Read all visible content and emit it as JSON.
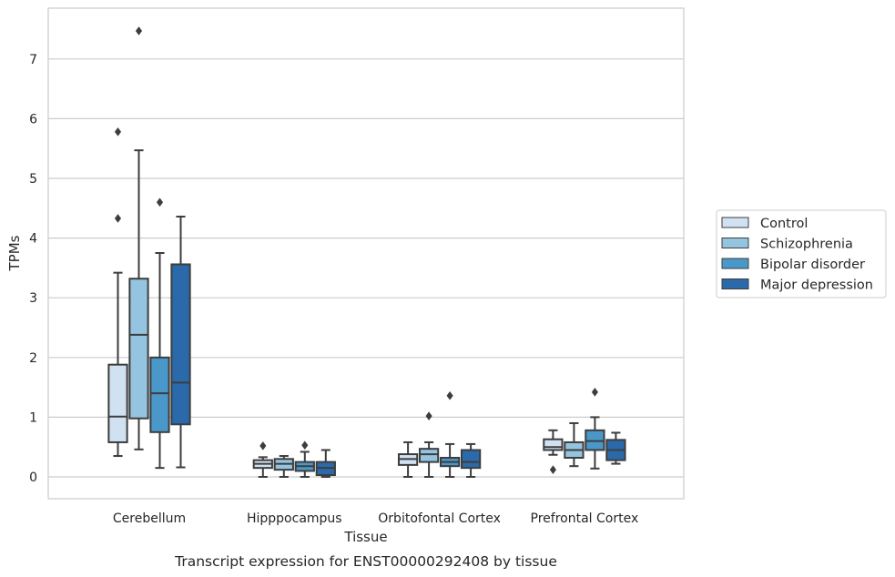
{
  "chart_data": {
    "type": "box",
    "xlabel": "Tissue",
    "ylabel": "TPMs",
    "caption": "Transcript expression for ENST00000292408 by tissue",
    "ylim": [
      -0.35,
      7.85
    ],
    "yticks": [
      0,
      1,
      2,
      3,
      4,
      5,
      6,
      7
    ],
    "grid": "horizontal",
    "legend_position": "right",
    "categories": [
      "Cerebellum",
      "Hipppocampus",
      "Orbitofontal Cortex",
      "Prefrontal Cortex"
    ],
    "series": [
      {
        "name": "Control",
        "color": "#d0e1f2",
        "boxes": [
          {
            "whislo": 0.35,
            "q1": 0.58,
            "med": 1.01,
            "q3": 1.88,
            "whishi": 3.42,
            "fliers": [
              4.33,
              5.78
            ]
          },
          {
            "whislo": 0.0,
            "q1": 0.15,
            "med": 0.22,
            "q3": 0.28,
            "whishi": 0.33,
            "fliers": [
              0.52
            ]
          },
          {
            "whislo": 0.0,
            "q1": 0.2,
            "med": 0.3,
            "q3": 0.38,
            "whishi": 0.58,
            "fliers": []
          },
          {
            "whislo": 0.37,
            "q1": 0.45,
            "med": 0.5,
            "q3": 0.63,
            "whishi": 0.78,
            "fliers": [
              0.12
            ]
          }
        ]
      },
      {
        "name": "Schizophrenia",
        "color": "#94c4df",
        "boxes": [
          {
            "whislo": 0.46,
            "q1": 0.98,
            "med": 2.38,
            "q3": 3.32,
            "whishi": 5.47,
            "fliers": [
              7.47
            ]
          },
          {
            "whislo": 0.0,
            "q1": 0.12,
            "med": 0.22,
            "q3": 0.3,
            "whishi": 0.35,
            "fliers": []
          },
          {
            "whislo": 0.0,
            "q1": 0.25,
            "med": 0.38,
            "q3": 0.47,
            "whishi": 0.58,
            "fliers": [
              1.02
            ]
          },
          {
            "whislo": 0.18,
            "q1": 0.32,
            "med": 0.45,
            "q3": 0.58,
            "whishi": 0.9,
            "fliers": []
          }
        ]
      },
      {
        "name": "Bipolar disorder",
        "color": "#4a98c9",
        "boxes": [
          {
            "whislo": 0.15,
            "q1": 0.75,
            "med": 1.4,
            "q3": 2.0,
            "whishi": 3.75,
            "fliers": [
              4.6
            ]
          },
          {
            "whislo": 0.0,
            "q1": 0.1,
            "med": 0.18,
            "q3": 0.25,
            "whishi": 0.42,
            "fliers": [
              0.53
            ]
          },
          {
            "whislo": 0.0,
            "q1": 0.18,
            "med": 0.25,
            "q3": 0.32,
            "whishi": 0.55,
            "fliers": [
              1.36
            ]
          },
          {
            "whislo": 0.14,
            "q1": 0.45,
            "med": 0.6,
            "q3": 0.78,
            "whishi": 1.0,
            "fliers": [
              1.42
            ]
          }
        ]
      },
      {
        "name": "Major depression",
        "color": "#2a6aab",
        "boxes": [
          {
            "whislo": 0.16,
            "q1": 0.88,
            "med": 1.58,
            "q3": 3.56,
            "whishi": 4.36,
            "fliers": []
          },
          {
            "whislo": 0.0,
            "q1": 0.03,
            "med": 0.15,
            "q3": 0.25,
            "whishi": 0.45,
            "fliers": []
          },
          {
            "whislo": 0.0,
            "q1": 0.15,
            "med": 0.25,
            "q3": 0.45,
            "whishi": 0.55,
            "fliers": []
          },
          {
            "whislo": 0.22,
            "q1": 0.28,
            "med": 0.45,
            "q3": 0.62,
            "whishi": 0.74,
            "fliers": []
          }
        ]
      }
    ]
  }
}
